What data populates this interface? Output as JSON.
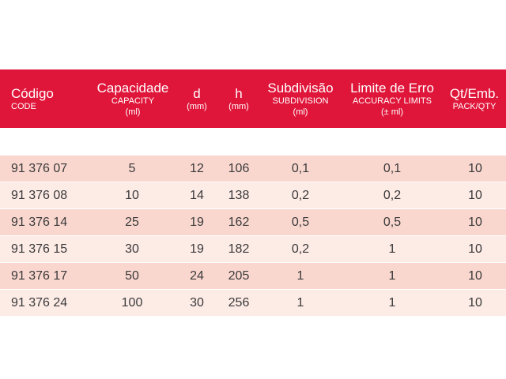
{
  "header": {
    "columns": [
      {
        "title": "Código",
        "sub": [
          "CODE"
        ]
      },
      {
        "title": "Capacidade",
        "sub": [
          "CAPACITY",
          "(ml)"
        ]
      },
      {
        "title": "d",
        "sub": [
          "(mm)"
        ]
      },
      {
        "title": "h",
        "sub": [
          "(mm)"
        ]
      },
      {
        "title": "Subdivisão",
        "sub": [
          "SUBDIVISION",
          "(ml)"
        ]
      },
      {
        "title": "Limite de Erro",
        "sub": [
          "ACCURACY LIMITS",
          "(± ml)"
        ]
      },
      {
        "title": "Qt/Emb.",
        "sub": [
          "PACK/QTY"
        ]
      }
    ]
  },
  "rows": [
    [
      "91 376 07",
      "5",
      "12",
      "106",
      "0,1",
      "0,1",
      "10"
    ],
    [
      "91 376 08",
      "10",
      "14",
      "138",
      "0,2",
      "0,2",
      "10"
    ],
    [
      "91 376 14",
      "25",
      "19",
      "162",
      "0,5",
      "0,5",
      "10"
    ],
    [
      "91 376 15",
      "30",
      "19",
      "182",
      "0,2",
      "1",
      "10"
    ],
    [
      "91 376 17",
      "50",
      "24",
      "205",
      "1",
      "1",
      "10"
    ],
    [
      "91 376 24",
      "100",
      "30",
      "256",
      "1",
      "1",
      "10"
    ]
  ],
  "colors": {
    "header_bg": "#e0153a",
    "row_odd": "#f9d7cf",
    "row_even": "#fdebe6",
    "text": "#3a3a3a"
  }
}
